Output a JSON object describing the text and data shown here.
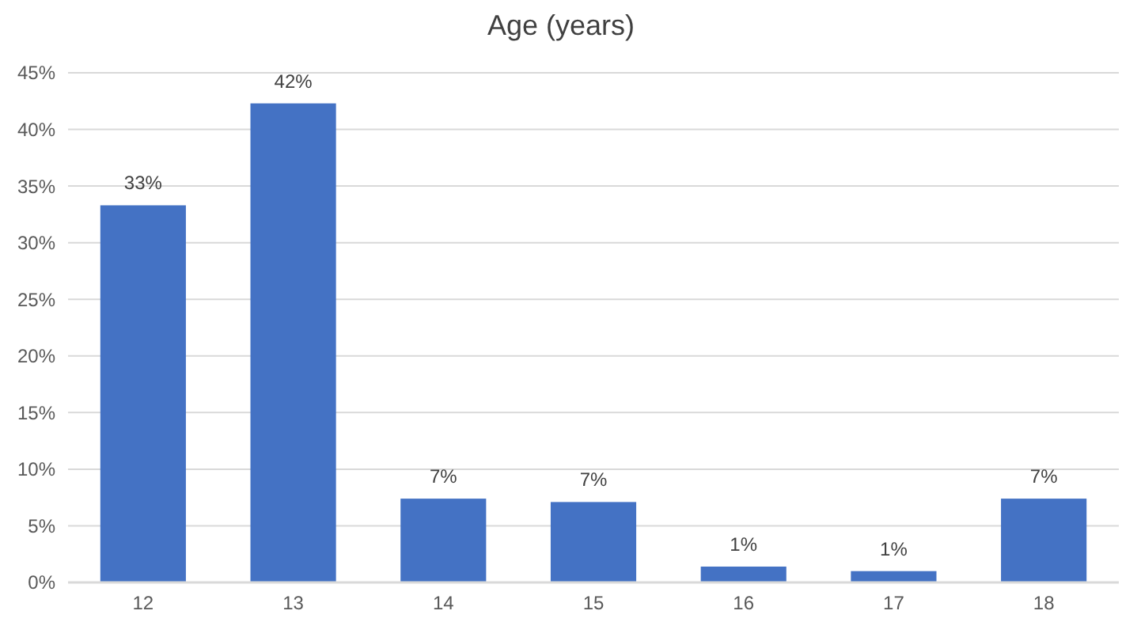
{
  "chart_data": {
    "type": "bar",
    "title": "Age (years)",
    "categories": [
      "12",
      "13",
      "14",
      "15",
      "16",
      "17",
      "18"
    ],
    "values": [
      33.3,
      42.3,
      7.4,
      7.1,
      1.4,
      1.0,
      7.4
    ],
    "value_labels": [
      "33%",
      "42%",
      "7%",
      "7%",
      "1%",
      "1%",
      "7%"
    ],
    "color": "#4472c4",
    "ylim": [
      0,
      45
    ],
    "yticks": [
      {
        "value": 0,
        "label": "0%"
      },
      {
        "value": 5,
        "label": "5%"
      },
      {
        "value": 10,
        "label": "10%"
      },
      {
        "value": 15,
        "label": "15%"
      },
      {
        "value": 20,
        "label": "20%"
      },
      {
        "value": 25,
        "label": "25%"
      },
      {
        "value": 30,
        "label": "30%"
      },
      {
        "value": 35,
        "label": "35%"
      },
      {
        "value": 40,
        "label": "40%"
      },
      {
        "value": 45,
        "label": "45%"
      }
    ],
    "grid": "y"
  }
}
